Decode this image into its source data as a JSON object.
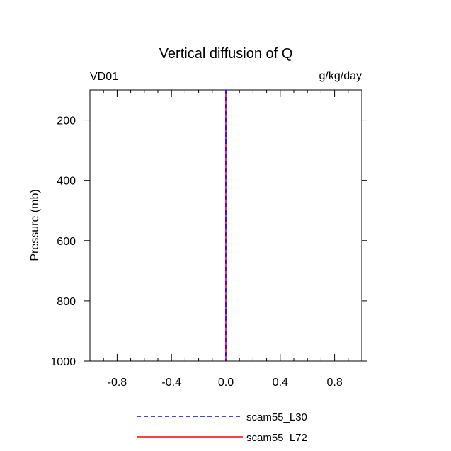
{
  "chart_data": {
    "type": "line",
    "title": "Vertical diffusion of Q",
    "left_label": "VD01",
    "units_label": "g/kg/day",
    "ylabel": "Pressure (mb)",
    "xlabel": "",
    "xlim": [
      -1.0,
      1.0
    ],
    "ylim": [
      100,
      1000
    ],
    "y_inverted": true,
    "x_ticks": [
      -0.8,
      -0.4,
      0.0,
      0.4,
      0.8
    ],
    "x_tick_labels": [
      "-0.8",
      "-0.4",
      "0.0",
      "0.4",
      "0.8"
    ],
    "y_ticks": [
      200,
      400,
      600,
      800,
      1000
    ],
    "y_tick_labels": [
      "200",
      "400",
      "600",
      "800",
      "1000"
    ],
    "grid": false,
    "legend_position": "bottom",
    "series": [
      {
        "name": "scam55_L30",
        "color": "#0000ff",
        "dash": "dashed",
        "x": [
          0.0,
          0.0
        ],
        "y": [
          100,
          1000
        ]
      },
      {
        "name": "scam55_L72",
        "color": "#ff0000",
        "dash": "solid",
        "x": [
          0.0,
          0.0
        ],
        "y": [
          100,
          1000
        ]
      }
    ]
  }
}
